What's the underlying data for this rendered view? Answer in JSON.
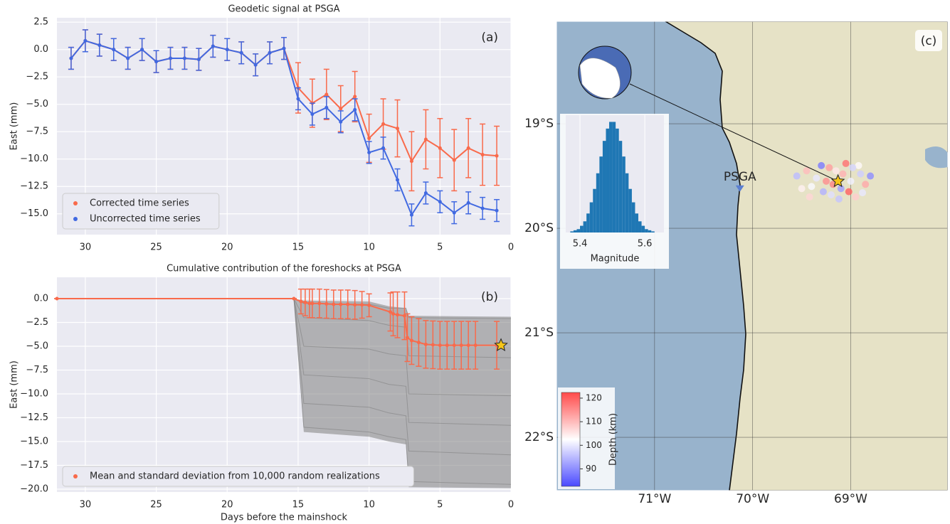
{
  "chart_data": [
    {
      "type": "line",
      "title": "Geodetic signal at PSGA",
      "panel_label": "(a)",
      "ylabel": "East (mm)",
      "x": [
        31,
        30,
        29,
        28,
        27,
        26,
        25,
        24,
        23,
        22,
        21,
        20,
        19,
        18,
        17,
        16,
        15,
        14,
        13,
        12,
        11,
        10,
        9,
        8,
        7,
        6,
        5,
        4,
        3,
        2,
        1
      ],
      "xlim": [
        32,
        0
      ],
      "ylim": [
        -16.9,
        2.9
      ],
      "xticks": [
        30,
        25,
        20,
        15,
        10,
        5,
        0
      ],
      "yticks": [
        2.5,
        {
          "value": 0,
          "label": "0.0"
        },
        {
          "value": -2.5,
          "label": "−2.5"
        },
        {
          "value": -5,
          "label": "−5.0"
        },
        {
          "value": -7.5,
          "label": "−7.5"
        },
        {
          "value": -10,
          "label": "−10.0"
        },
        {
          "value": -12.5,
          "label": "−12.5"
        },
        {
          "value": -15,
          "label": "−15.0"
        }
      ],
      "grid": true,
      "legend": "lower left",
      "series": [
        {
          "name": "Corrected time series",
          "color": "#f96a4b",
          "values": [
            -0.8,
            0.8,
            0.4,
            0.0,
            -0.8,
            0.0,
            -1.1,
            -0.8,
            -0.8,
            -0.9,
            0.3,
            0.0,
            -0.3,
            -1.4,
            -0.3,
            0.1,
            -3.5,
            -4.9,
            -4.1,
            -5.4,
            -4.3,
            -8.1,
            -6.8,
            -7.2,
            -10.2,
            -8.2,
            -9.0,
            -10.1,
            -9.0,
            -9.6,
            -9.7
          ],
          "errors": [
            1.0,
            1.0,
            1.0,
            1.0,
            1.0,
            1.0,
            1.0,
            1.0,
            1.0,
            1.0,
            1.0,
            1.0,
            1.0,
            1.0,
            1.0,
            1.0,
            2.3,
            2.2,
            2.3,
            2.1,
            2.3,
            2.2,
            2.3,
            2.6,
            2.7,
            2.7,
            2.7,
            2.8,
            2.7,
            2.8,
            2.7
          ]
        },
        {
          "name": "Uncorrected time series",
          "color": "#4169e1",
          "values": [
            -0.8,
            0.8,
            0.4,
            0.0,
            -0.8,
            0.0,
            -1.1,
            -0.8,
            -0.8,
            -0.9,
            0.3,
            0.0,
            -0.3,
            -1.4,
            -0.3,
            0.1,
            -4.5,
            -5.9,
            -5.3,
            -6.6,
            -5.5,
            -9.4,
            -9.0,
            -11.9,
            -15.1,
            -13.1,
            -13.9,
            -14.9,
            -14.0,
            -14.5,
            -14.7
          ],
          "errors": [
            1.0,
            1.0,
            1.0,
            1.0,
            1.0,
            1.0,
            1.0,
            1.0,
            1.0,
            1.0,
            1.0,
            1.0,
            1.0,
            1.0,
            1.0,
            1.0,
            1.0,
            1.0,
            1.0,
            1.0,
            1.0,
            1.0,
            1.0,
            1.0,
            1.0,
            1.0,
            1.0,
            1.0,
            1.0,
            1.0,
            1.0
          ]
        }
      ]
    },
    {
      "type": "line",
      "title": "Cumulative contribution of the foreshocks at PSGA",
      "panel_label": "(b)",
      "xlabel": "Days before the mainshock",
      "ylabel": "East (mm)",
      "x": [
        32,
        15.3,
        14.8,
        14.5,
        14.2,
        14.0,
        13.5,
        13.0,
        12.5,
        12.0,
        11.5,
        11.0,
        10.5,
        10.0,
        8.5,
        8.3,
        8.0,
        7.5,
        7.3,
        7.0,
        6.5,
        6.0,
        5.5,
        5.0,
        4.5,
        4.0,
        3.5,
        3.0,
        2.5,
        1.0
      ],
      "xlim": [
        32,
        0
      ],
      "ylim": [
        -20.3,
        2.24
      ],
      "xticks": [
        30,
        25,
        20,
        15,
        10,
        5,
        0
      ],
      "yticks": [
        {
          "value": 0,
          "label": "0.0"
        },
        {
          "value": -2.5,
          "label": "−2.5"
        },
        {
          "value": -5,
          "label": "−5.0"
        },
        {
          "value": -7.5,
          "label": "−7.5"
        },
        {
          "value": -10,
          "label": "−10.0"
        },
        {
          "value": -12.5,
          "label": "−12.5"
        },
        {
          "value": -15,
          "label": "−15.0"
        },
        {
          "value": -17.5,
          "label": "−17.5"
        },
        {
          "value": -20,
          "label": "−20.0"
        }
      ],
      "grid": true,
      "legend": "lower left",
      "series": [
        {
          "name": "Mean and standard deviation from 10,000 random realizations",
          "color": "#f96a4b",
          "values": [
            0,
            0,
            -0.3,
            -0.4,
            -0.5,
            -0.5,
            -0.5,
            -0.55,
            -0.6,
            -0.6,
            -0.6,
            -0.65,
            -0.65,
            -0.7,
            -1.4,
            -1.6,
            -1.7,
            -1.8,
            -4.1,
            -4.4,
            -4.6,
            -4.8,
            -4.85,
            -4.9,
            -4.9,
            -4.9,
            -4.9,
            -4.9,
            -4.9,
            -4.9
          ],
          "errors": [
            0,
            0,
            1.3,
            1.4,
            1.5,
            1.5,
            1.5,
            1.5,
            1.5,
            1.5,
            1.5,
            1.5,
            1.4,
            1.2,
            2.0,
            2.3,
            2.4,
            2.5,
            2.5,
            2.5,
            2.5,
            2.5,
            2.5,
            2.5,
            2.5,
            2.5,
            2.5,
            2.5,
            2.5,
            2.5
          ]
        }
      ],
      "realizations": {
        "color": "#808080",
        "x": [
          32,
          15.3,
          14.6,
          10,
          8.6,
          7.4,
          7.2,
          0
        ],
        "upper": [
          0,
          0,
          -0.2,
          -0.3,
          -0.8,
          -1.0,
          -1.8,
          -1.9
        ],
        "lower": [
          0,
          0,
          -14,
          -14.5,
          -15,
          -15.3,
          -19.8,
          -19.9
        ],
        "samples": [
          [
            0,
            0,
            -0.5,
            -0.6,
            -1.0,
            -1.0,
            -2.0,
            -2.1
          ],
          [
            0,
            0,
            -2,
            -2.3,
            -2.8,
            -3,
            -6,
            -6.2
          ],
          [
            0,
            0,
            -5,
            -5.3,
            -5.8,
            -6,
            -10,
            -10.2
          ],
          [
            0,
            0,
            -8,
            -8.4,
            -9,
            -9.2,
            -13,
            -13.3
          ],
          [
            0,
            0,
            -11,
            -11.4,
            -12,
            -12.3,
            -16,
            -16.4
          ],
          [
            0,
            0,
            -13.5,
            -14,
            -14.5,
            -14.8,
            -19.2,
            -19.5
          ]
        ]
      },
      "mainshock": {
        "x": 0.7,
        "y": -4.9,
        "color": "#f5c518"
      }
    },
    {
      "type": "map",
      "panel_label": "(c)",
      "lonlim": [
        -72.0,
        -68.01
      ],
      "latlim": [
        -22.51,
        -18.02
      ],
      "lonticks": [
        {
          "value": -71,
          "label": "71°W"
        },
        {
          "value": -70,
          "label": "70°W"
        },
        {
          "value": -69,
          "label": "69°W"
        }
      ],
      "latticks": [
        {
          "value": -19,
          "label": "19°S"
        },
        {
          "value": -20,
          "label": "20°S"
        },
        {
          "value": -21,
          "label": "21°S"
        },
        {
          "value": -22,
          "label": "22°S"
        }
      ],
      "station": {
        "name": "PSGA",
        "lon": -70.13,
        "lat": -19.59,
        "color": "#5b7fd1"
      },
      "mainshock": {
        "lon": -69.13,
        "lat": -19.55,
        "color": "#f5c518"
      },
      "events": {
        "lon": [
          -69.55,
          -69.45,
          -69.4,
          -69.3,
          -69.25,
          -69.2,
          -69.15,
          -69.1,
          -69.05,
          -69.0,
          -68.95,
          -68.9,
          -68.85,
          -68.8,
          -69.5,
          -69.35,
          -69.22,
          -69.12,
          -69.02,
          -68.92,
          -69.42,
          -69.28,
          -69.08,
          -68.98,
          -69.18,
          -68.88
        ],
        "lat": [
          -19.5,
          -19.45,
          -19.6,
          -19.4,
          -19.55,
          -19.68,
          -19.45,
          -19.62,
          -19.38,
          -19.55,
          -19.7,
          -19.48,
          -19.58,
          -19.5,
          -19.62,
          -19.52,
          -19.42,
          -19.72,
          -19.65,
          -19.4,
          -19.7,
          -19.65,
          -19.48,
          -19.42,
          -19.58,
          -19.66
        ],
        "depth": [
          95,
          110,
          102,
          88,
          115,
          99,
          105,
          92,
          118,
          101,
          108,
          97,
          112,
          90,
          104,
          100,
          113,
          96,
          120,
          103,
          107,
          94,
          111,
          98,
          116,
          100
        ]
      },
      "colorbar": {
        "label": "Depth (km)",
        "lim": [
          82.6,
          122.4
        ],
        "ticks": [
          90,
          100,
          110,
          120
        ]
      },
      "histogram": {
        "xlabel": "Magnitude",
        "color": "#1f77b4",
        "xlim": [
          5.356,
          5.659
        ],
        "xticks": [
          5.4,
          5.6
        ],
        "ylim": [
          0,
          105
        ],
        "bins": [
          5.36,
          5.37,
          5.38,
          5.39,
          5.4,
          5.41,
          5.42,
          5.43,
          5.44,
          5.45,
          5.46,
          5.47,
          5.48,
          5.49,
          5.5,
          5.51,
          5.52,
          5.53,
          5.54,
          5.55,
          5.56,
          5.57,
          5.58,
          5.59,
          5.6,
          5.61,
          5.62,
          5.63,
          5.64
        ],
        "counts": [
          0,
          1,
          2,
          3,
          6,
          10,
          17,
          27,
          39,
          53,
          68,
          82,
          93,
          99,
          99,
          93,
          82,
          68,
          53,
          39,
          27,
          17,
          10,
          6,
          3,
          2,
          1,
          0
        ]
      }
    }
  ]
}
